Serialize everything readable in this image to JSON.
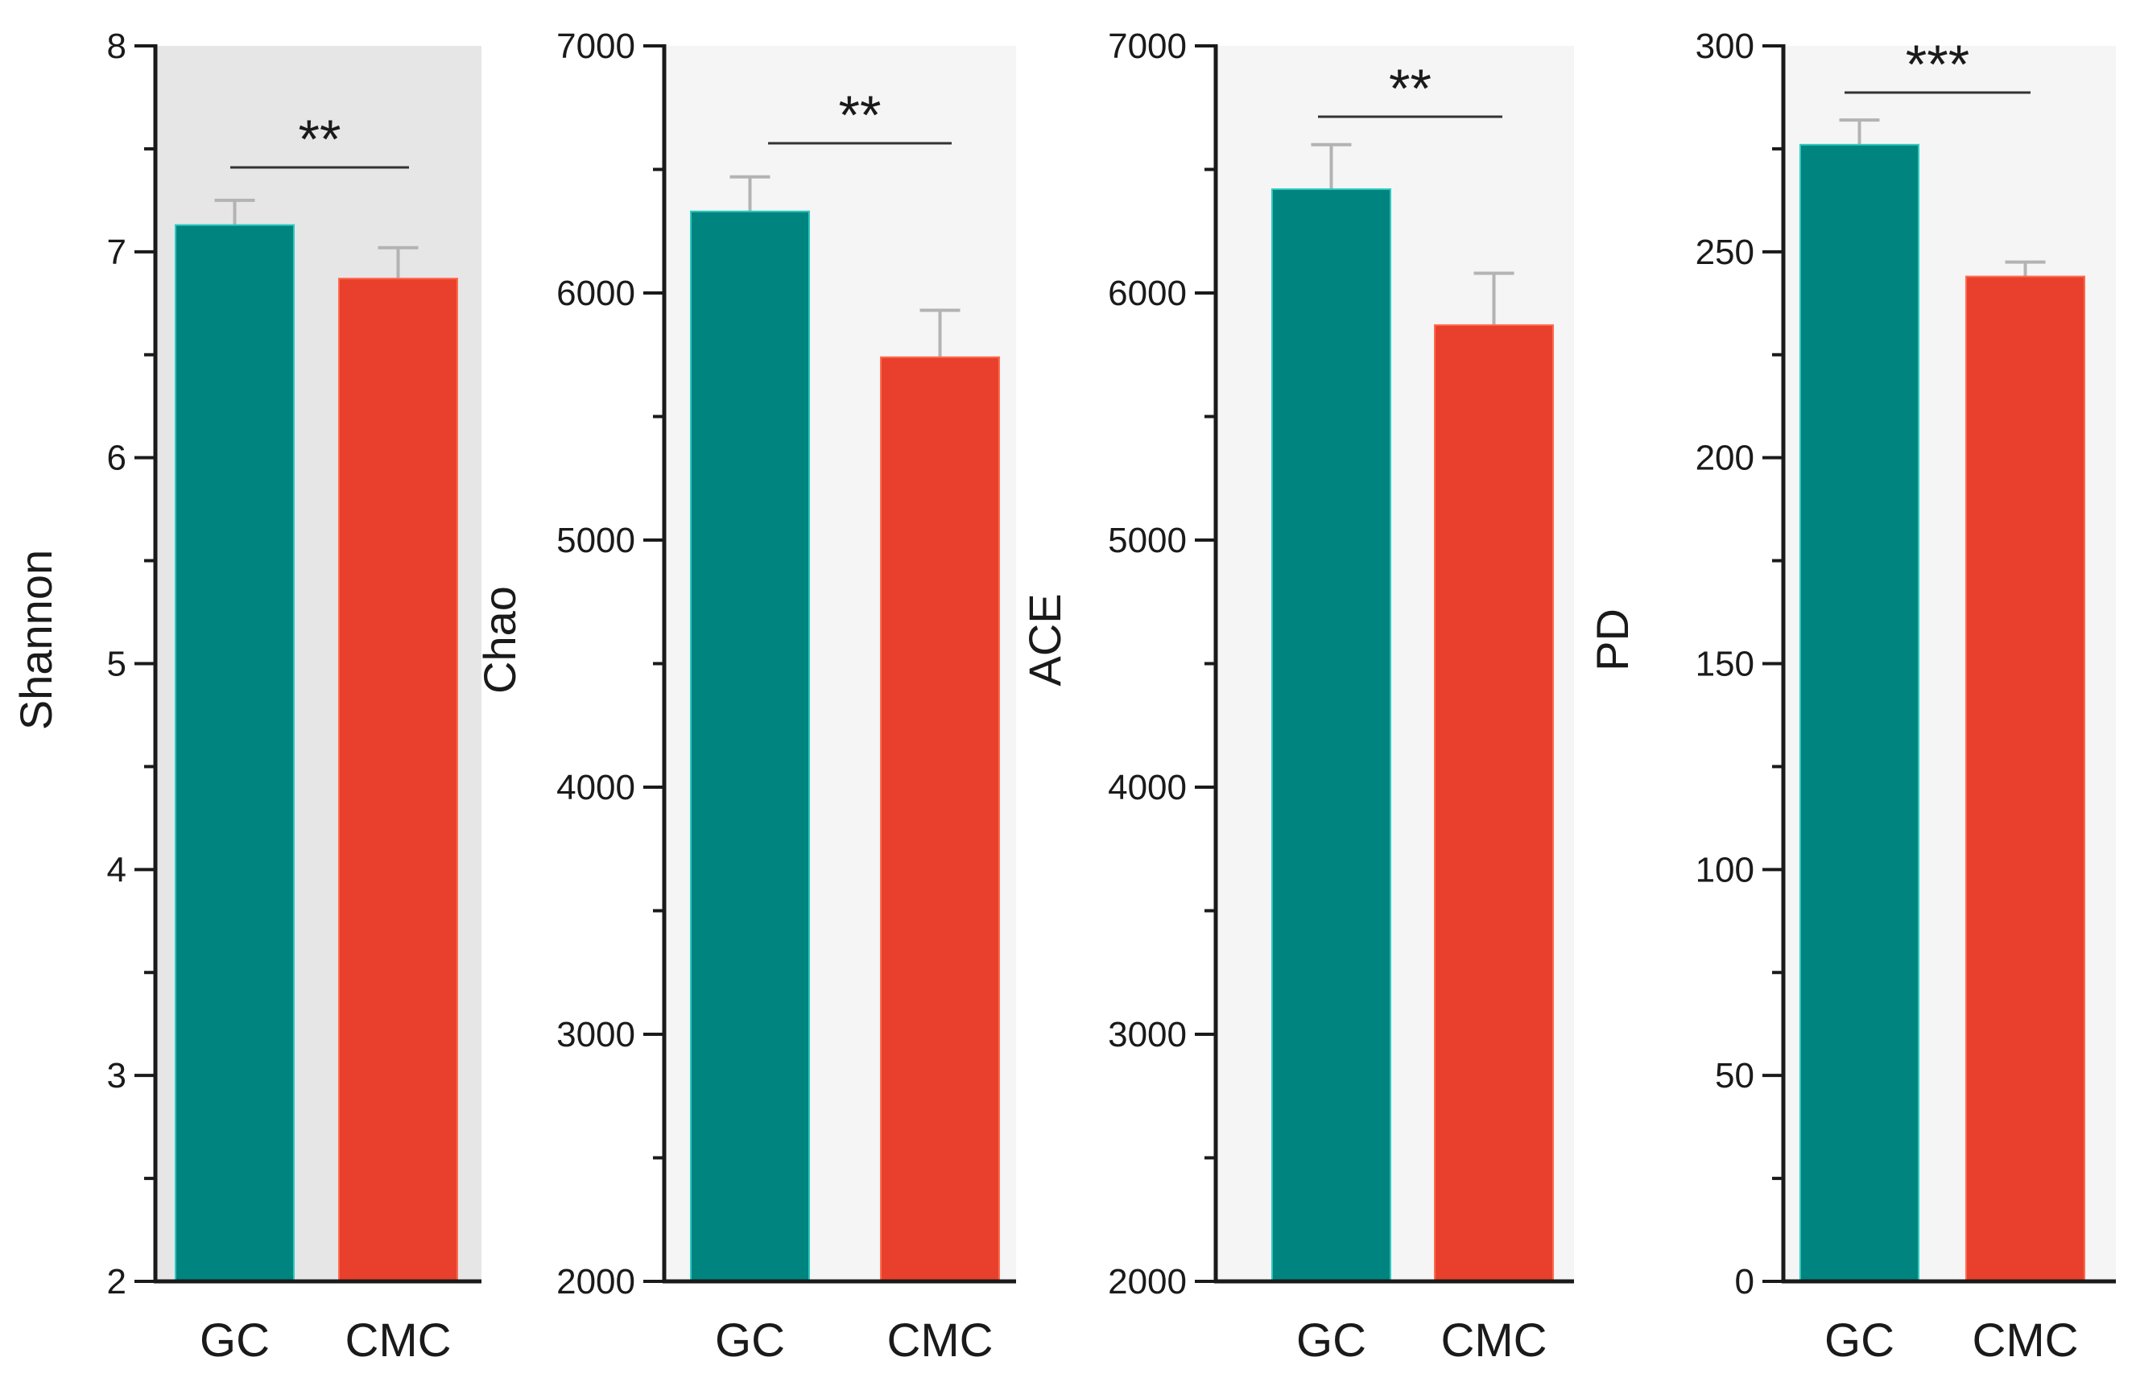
{
  "colors": {
    "group1": "#00847f",
    "group2": "#e8402c",
    "panel_bg_first": "#e6e6e6",
    "panel_bg": "#f5f5f5",
    "error_bar": "#b3b3b3",
    "axis": "#1a1a1a"
  },
  "chart_data": [
    {
      "type": "bar",
      "title": "",
      "xlabel": "",
      "ylabel": "Shannon",
      "categories": [
        "GC",
        "CMC"
      ],
      "values": [
        7.13,
        6.87
      ],
      "errors": [
        0.12,
        0.15
      ],
      "ylim": [
        2,
        8
      ],
      "major_ticks": [
        2,
        3,
        4,
        5,
        6,
        7,
        8
      ],
      "minor_step": 0.5,
      "significance": "**",
      "grid": false
    },
    {
      "type": "bar",
      "title": "",
      "xlabel": "",
      "ylabel": "Chao",
      "categories": [
        "GC",
        "CMC"
      ],
      "values": [
        6330,
        5740
      ],
      "errors": [
        140,
        190
      ],
      "ylim": [
        2000,
        7000
      ],
      "major_ticks": [
        2000,
        3000,
        4000,
        5000,
        6000,
        7000
      ],
      "minor_step": 500,
      "significance": "**",
      "grid": false
    },
    {
      "type": "bar",
      "title": "",
      "xlabel": "",
      "ylabel": "ACE",
      "categories": [
        "GC",
        "CMC"
      ],
      "values": [
        6420,
        5870
      ],
      "errors": [
        180,
        210
      ],
      "ylim": [
        2000,
        7000
      ],
      "major_ticks": [
        2000,
        3000,
        4000,
        5000,
        6000,
        7000
      ],
      "minor_step": 500,
      "significance": "**",
      "grid": false
    },
    {
      "type": "bar",
      "title": "",
      "xlabel": "",
      "ylabel": "PD",
      "categories": [
        "GC",
        "CMC"
      ],
      "values": [
        276,
        244
      ],
      "errors": [
        6,
        3.5
      ],
      "ylim": [
        0,
        300
      ],
      "major_ticks": [
        0,
        50,
        100,
        150,
        200,
        250,
        300
      ],
      "minor_step": 25,
      "significance": "***",
      "grid": false
    }
  ]
}
